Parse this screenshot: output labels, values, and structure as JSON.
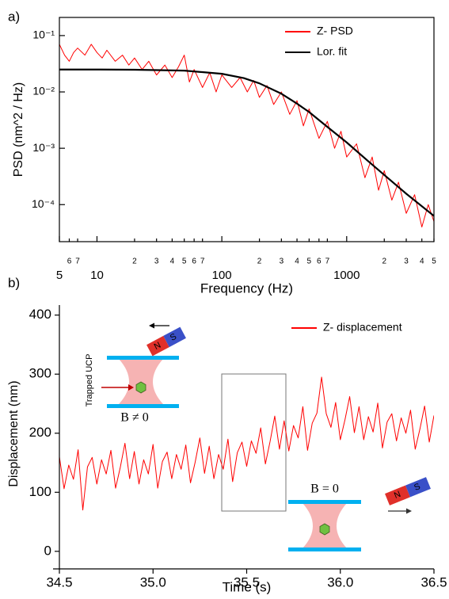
{
  "chart_data": [
    {
      "type": "line",
      "panel_label": "a)",
      "ylabel": "PSD (nm^2 / Hz)",
      "xlabel": "Frequency (Hz)",
      "xscale": "log",
      "yscale": "log",
      "legend": "top-right",
      "xlim": [
        5,
        5000
      ],
      "ylim": [
        2.2e-05,
        0.21
      ],
      "xticks": [
        5,
        {
          "value": 6,
          "label": "6"
        },
        {
          "value": 7,
          "label": "7"
        },
        10,
        {
          "value": 20,
          "label": "2"
        },
        {
          "value": 30,
          "label": "3"
        },
        {
          "value": 40,
          "label": "4"
        },
        {
          "value": 50,
          "label": "5"
        },
        {
          "value": 60,
          "label": "6"
        },
        {
          "value": 70,
          "label": "7"
        },
        100,
        {
          "value": 200,
          "label": "2"
        },
        {
          "value": 300,
          "label": "3"
        },
        {
          "value": 400,
          "label": "4"
        },
        {
          "value": 500,
          "label": "5"
        },
        {
          "value": 600,
          "label": "6"
        },
        {
          "value": 700,
          "label": "7"
        },
        1000,
        {
          "value": 2000,
          "label": "2"
        },
        {
          "value": 3000,
          "label": "3"
        },
        {
          "value": 4000,
          "label": "4"
        },
        {
          "value": 5000,
          "label": "5"
        }
      ],
      "yticks": [
        {
          "value": 0.0001,
          "label": "10⁻⁴"
        },
        {
          "value": 0.001,
          "label": "10⁻³"
        },
        {
          "value": 0.01,
          "label": "10⁻²"
        },
        {
          "value": 0.1,
          "label": "10⁻¹"
        }
      ],
      "series": [
        {
          "name": "Z- PSD",
          "color": "#ff0000",
          "x": [
            5,
            5.5,
            6,
            6.5,
            7,
            8,
            9,
            10,
            11,
            12,
            14,
            16,
            18,
            20,
            23,
            26,
            30,
            35,
            40,
            45,
            50,
            55,
            60,
            70,
            80,
            90,
            100,
            120,
            140,
            160,
            180,
            200,
            230,
            260,
            300,
            350,
            400,
            450,
            500,
            600,
            700,
            800,
            900,
            1000,
            1200,
            1400,
            1600,
            1800,
            2000,
            2300,
            2600,
            3000,
            3500,
            4000,
            4500,
            5000
          ],
          "values": [
            0.07,
            0.045,
            0.035,
            0.05,
            0.06,
            0.045,
            0.07,
            0.05,
            0.04,
            0.055,
            0.035,
            0.045,
            0.03,
            0.04,
            0.025,
            0.035,
            0.02,
            0.03,
            0.018,
            0.028,
            0.045,
            0.015,
            0.025,
            0.012,
            0.022,
            0.01,
            0.02,
            0.012,
            0.018,
            0.01,
            0.016,
            0.008,
            0.013,
            0.006,
            0.01,
            0.004,
            0.007,
            0.0025,
            0.005,
            0.0015,
            0.003,
            0.001,
            0.002,
            0.0007,
            0.0012,
            0.0003,
            0.0007,
            0.00018,
            0.0004,
            0.00012,
            0.00025,
            7e-05,
            0.00015,
            4e-05,
            0.0001,
            5e-05
          ]
        },
        {
          "name": "Lor. fit",
          "color": "#000000",
          "x": [
            5,
            10,
            20,
            50,
            100,
            150,
            200,
            300,
            400,
            500,
            700,
            1000,
            1500,
            2000,
            3000,
            5000
          ],
          "values": [
            0.025,
            0.025,
            0.0248,
            0.0239,
            0.021,
            0.0176,
            0.0142,
            0.0093,
            0.0062,
            0.0044,
            0.0024,
            0.00127,
            0.00058,
            0.000336,
            0.000156,
            6.3e-05
          ]
        }
      ]
    },
    {
      "type": "line",
      "panel_label": "b)",
      "ylabel": "Displacement (nm)",
      "xlabel": "Time (s)",
      "xscale": "linear",
      "yscale": "linear",
      "legend": "top-right",
      "xlim": [
        34.5,
        36.5
      ],
      "ylim": [
        -19,
        417
      ],
      "xticks": [
        34.5,
        {
          "value": 35,
          "label": "35.0"
        },
        35.5,
        {
          "value": 36,
          "label": "36.0"
        },
        36.5
      ],
      "yticks": [
        0,
        100,
        200,
        300,
        400
      ],
      "annotations": [
        "Trapped UCP",
        "B ≠ 0",
        "B = 0",
        "N",
        "S",
        "N",
        "S"
      ],
      "series": [
        {
          "name": "Z- displacement",
          "color": "#ff0000",
          "x": [
            34.5,
            34.525,
            34.55,
            34.575,
            34.6,
            34.625,
            34.65,
            34.675,
            34.7,
            34.725,
            34.75,
            34.775,
            34.8,
            34.825,
            34.85,
            34.875,
            34.9,
            34.925,
            34.95,
            34.975,
            35,
            35.025,
            35.05,
            35.075,
            35.1,
            35.125,
            35.15,
            35.175,
            35.2,
            35.225,
            35.25,
            35.275,
            35.3,
            35.325,
            35.35,
            35.375,
            35.4,
            35.425,
            35.45,
            35.475,
            35.5,
            35.525,
            35.55,
            35.575,
            35.6,
            35.625,
            35.65,
            35.675,
            35.7,
            35.725,
            35.75,
            35.775,
            35.8,
            35.825,
            35.85,
            35.875,
            35.9,
            35.925,
            35.95,
            35.975,
            36,
            36.025,
            36.05,
            36.075,
            36.1,
            36.125,
            36.15,
            36.175,
            36.2,
            36.225,
            36.25,
            36.275,
            36.3,
            36.325,
            36.35,
            36.375,
            36.4,
            36.425,
            36.45,
            36.475,
            36.5
          ],
          "values": [
            160,
            106,
            146,
            122,
            172,
            70,
            143,
            159,
            114,
            155,
            131,
            171,
            107,
            142,
            183,
            123,
            169,
            114,
            155,
            131,
            181,
            107,
            152,
            168,
            123,
            164,
            139,
            180,
            116,
            151,
            192,
            132,
            178,
            123,
            164,
            139,
            190,
            118,
            167,
            185,
            144,
            187,
            166,
            209,
            148,
            186,
            229,
            173,
            221,
            170,
            213,
            192,
            245,
            171,
            217,
            234,
            295,
            233,
            210,
            252,
            189,
            223,
            262,
            201,
            245,
            189,
            228,
            202,
            251,
            175,
            219,
            233,
            187,
            226,
            200,
            239,
            173,
            207,
            246,
            185,
            230
          ]
        }
      ]
    }
  ]
}
